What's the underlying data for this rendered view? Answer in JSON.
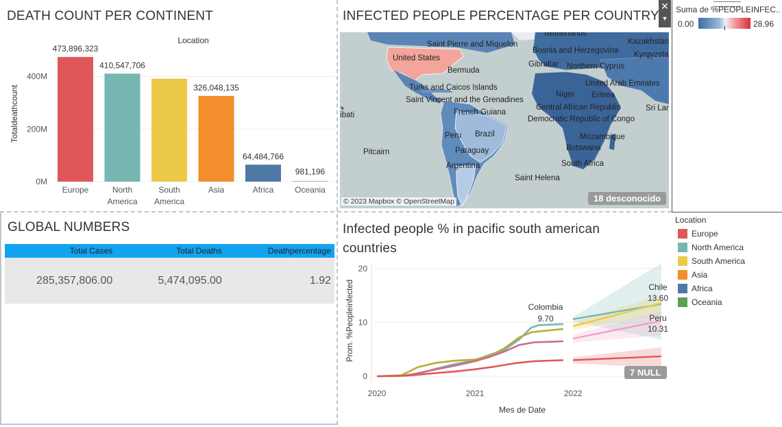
{
  "death_panel": {
    "title": "DEATH COUNT PER CONTINENT",
    "header": "Location",
    "yaxis_title": "Totaldeathcount",
    "yticks": [
      "0M",
      "200M",
      "400M"
    ]
  },
  "map_panel": {
    "title": "INFECTED PEOPLE PERCENTAGE PER COUNTRY",
    "attribution": "© 2023 Mapbox © OpenStreetMap",
    "unknown_badge": "18 desconocido",
    "labels": [
      "Netherlands",
      "Kazakhstan",
      "Saint Pierre and Miquelon",
      "Bosnia and Herzegovina",
      "Kyrgyzstan",
      "United States",
      "Bermuda",
      "Gibraltar",
      "Northern Cyprus",
      "United Arab Emirates",
      "Turks and Caicos Islands",
      "Niger",
      "Eritrea",
      "Saint Vincent and the Grenadines",
      "Central African Republic",
      "Sri Lanka",
      "French Guiana",
      "Democratic Republic of Congo",
      "Brazil",
      "Peru",
      "Mozambique",
      "Paraguay",
      "Botswana",
      "Argentina",
      "South Africa",
      "Pitcairn",
      "Saint Helena",
      "Kiribati"
    ]
  },
  "color_legend": {
    "title": "Suma de %PEOPLEINFEC..",
    "min": "0.00",
    "max": "28.96",
    "colors": {
      "low": "#3a6ea8",
      "mid": "#e9eef3",
      "high": "#d62f3a"
    }
  },
  "global_panel": {
    "title": "GLOBAL NUMBERS",
    "headers": [
      "Total Cases",
      "Total Deaths",
      "Deathpercentage"
    ],
    "values": [
      "285,357,806.00",
      "5,474,095.00",
      "1.92"
    ],
    "header_color": "#12a3f0"
  },
  "line_panel": {
    "title": "Infected people % in pacific south american countries",
    "xlabel": "Mes de Date",
    "ylabel": "Prom. %Peopleinfected",
    "null_badge": "7 NULL",
    "annotations": [
      {
        "name": "Colombia",
        "value": "9.70"
      },
      {
        "name": "Chile",
        "value": "13.60"
      },
      {
        "name": "Peru",
        "value": "10.31"
      }
    ]
  },
  "location_legend": {
    "title": "Location",
    "items": [
      {
        "label": "Europe",
        "color": "#e05759"
      },
      {
        "label": "North America",
        "color": "#76b7b2"
      },
      {
        "label": "South America",
        "color": "#edc949"
      },
      {
        "label": "Asia",
        "color": "#f28e2c"
      },
      {
        "label": "Africa",
        "color": "#4e79a7"
      },
      {
        "label": "Oceania",
        "color": "#59a14f"
      }
    ]
  },
  "chart_data": [
    {
      "type": "bar",
      "title": "DEATH COUNT PER CONTINENT",
      "categories": [
        "Europe",
        "North America",
        "South America",
        "Asia",
        "Africa",
        "Oceania"
      ],
      "category_labels": [
        [
          "Europe"
        ],
        [
          "North",
          "America"
        ],
        [
          "South",
          "America"
        ],
        [
          "Asia"
        ],
        [
          "Africa"
        ],
        [
          "Oceania"
        ]
      ],
      "values": [
        473896323,
        410547706,
        391500000,
        326048135,
        64484766,
        981196
      ],
      "data_labels": [
        "473,896,323",
        "410,547,706",
        "",
        "326,048,135",
        "64,484,766",
        "981,196"
      ],
      "colors": [
        "#e05759",
        "#76b7b2",
        "#edc949",
        "#f28e2c",
        "#4e79a7",
        "#59a14f"
      ],
      "xlabel": "",
      "ylabel": "Totaldeathcount",
      "ylim": [
        0,
        490000000
      ],
      "yticks": [
        0,
        200000000,
        400000000
      ],
      "grid": true
    },
    {
      "type": "line",
      "title": "Infected people % in pacific south american countries",
      "xlabel": "Mes de Date",
      "ylabel": "Prom. %Peopleinfected",
      "xlim": [
        2020.0,
        2022.95
      ],
      "ylim": [
        0,
        21
      ],
      "xticks": [
        "2020",
        "2021",
        "2022"
      ],
      "yticks": [
        0,
        10,
        20
      ],
      "series": [
        {
          "color": "#76b7b2",
          "values": [
            [
              2020.0,
              0
            ],
            [
              2020.25,
              0.1
            ],
            [
              2020.45,
              0.6
            ],
            [
              2020.6,
              1.4
            ],
            [
              2020.8,
              2.3
            ],
            [
              2021.0,
              3.0
            ],
            [
              2021.15,
              4.0
            ],
            [
              2021.3,
              4.9
            ],
            [
              2021.45,
              6.8
            ],
            [
              2021.57,
              9.0
            ],
            [
              2021.65,
              9.5
            ],
            [
              2021.9,
              9.7
            ]
          ]
        },
        {
          "color": "#b9ad32",
          "values": [
            [
              2020.0,
              0
            ],
            [
              2020.25,
              0.2
            ],
            [
              2020.42,
              1.7
            ],
            [
              2020.6,
              2.5
            ],
            [
              2020.8,
              2.9
            ],
            [
              2021.0,
              3.1
            ],
            [
              2021.15,
              3.8
            ],
            [
              2021.3,
              5.2
            ],
            [
              2021.45,
              7.2
            ],
            [
              2021.58,
              8.2
            ],
            [
              2021.9,
              8.8
            ]
          ]
        },
        {
          "color": "#c96b8e",
          "values": [
            [
              2020.0,
              0
            ],
            [
              2020.3,
              0.1
            ],
            [
              2020.5,
              0.9
            ],
            [
              2020.8,
              2.0
            ],
            [
              2021.0,
              2.8
            ],
            [
              2021.15,
              3.6
            ],
            [
              2021.3,
              4.6
            ],
            [
              2021.45,
              5.8
            ],
            [
              2021.6,
              6.3
            ],
            [
              2021.9,
              6.5
            ]
          ]
        },
        {
          "color": "#e05759",
          "values": [
            [
              2020.0,
              0
            ],
            [
              2020.3,
              0.1
            ],
            [
              2020.6,
              0.6
            ],
            [
              2020.8,
              0.9
            ],
            [
              2021.0,
              1.3
            ],
            [
              2021.2,
              1.8
            ],
            [
              2021.4,
              2.4
            ],
            [
              2021.6,
              2.8
            ],
            [
              2021.9,
              3.0
            ]
          ]
        }
      ],
      "forecasts": [
        {
          "color": "#76b7b2",
          "from": [
            2022.0,
            10.6
          ],
          "to": [
            2022.9,
            13.4
          ],
          "band_lo": [
            10.2,
            6.8
          ],
          "band_hi": [
            11.0,
            21.0
          ]
        },
        {
          "color": "#edc949",
          "from": [
            2022.0,
            9.3
          ],
          "to": [
            2022.9,
            13.6
          ],
          "band_lo": [
            8.6,
            11.4
          ],
          "band_hi": [
            10.0,
            15.2
          ]
        },
        {
          "color": "#f0a0c8",
          "from": [
            2022.0,
            7.0
          ],
          "to": [
            2022.9,
            10.3
          ],
          "band_lo": [
            6.2,
            7.6
          ],
          "band_hi": [
            7.8,
            12.0
          ]
        },
        {
          "color": "#e05759",
          "from": [
            2022.0,
            3.0
          ],
          "to": [
            2022.9,
            3.7
          ],
          "band_lo": [
            2.4,
            1.6
          ],
          "band_hi": [
            3.5,
            5.4
          ]
        }
      ]
    }
  ]
}
